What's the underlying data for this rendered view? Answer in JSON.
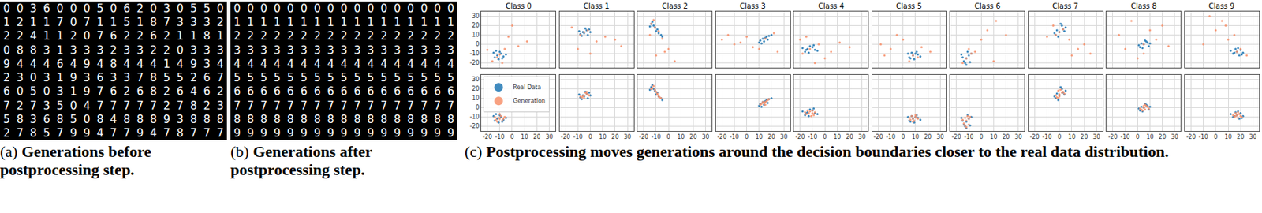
{
  "panels": [
    {
      "label": "(a)",
      "caption": "Generations before postprocessing step.",
      "grid": [
        "00360005062030550",
        "12117071151873332",
        "22411207622621181",
        "08831333233220333",
        "94446494844414934",
        "23031936337855267",
        "60503197626826462",
        "72735047777727823",
        "58368508488893888",
        "27857994779478777"
      ]
    },
    {
      "label": "(b)",
      "caption": "Generations after postprocessing step.",
      "grid": [
        "00000000000000000",
        "11111111111111111",
        "22222222222222222",
        "33333333333333333",
        "44444444444444444",
        "55555555555555555",
        "66666666666666666",
        "77777777777777777",
        "88888888888888888",
        "99999999999999999"
      ]
    }
  ],
  "chart_data": {
    "type": "scatter",
    "label": "(c)",
    "caption": "Postprocessing moves generations around the decision boundaries closer to the real data distribution.",
    "xlim": [
      -25,
      35
    ],
    "ylim": [
      -25,
      35
    ],
    "xticks": [
      -20,
      -10,
      0,
      10,
      20,
      30
    ],
    "yticks": [
      -20,
      -10,
      0,
      10,
      20,
      30
    ],
    "grid": true,
    "legend": "upper left",
    "series": [
      {
        "name": "Real Data",
        "color": "#1f77b4"
      },
      {
        "name": "Generation",
        "color": "#f7906b"
      }
    ],
    "classes": [
      {
        "title": "Class 0",
        "real": {
          "x": [
            -12,
            -9,
            -14,
            -7,
            -10,
            -5,
            -15,
            -11,
            -8,
            -13
          ],
          "y": [
            -12,
            -10,
            -14,
            -13,
            -8,
            -11,
            -9,
            -16,
            -15,
            -7
          ]
        },
        "generation_before": {
          "x": [
            -10,
            -6,
            -16,
            -3,
            5,
            -12,
            -20,
            0,
            -8,
            12
          ],
          "y": [
            -11,
            -5,
            -18,
            8,
            -2,
            -14,
            -6,
            20,
            -20,
            3
          ]
        },
        "generation_after": {
          "x": [
            -11,
            -9,
            -13,
            -7,
            -10,
            -6,
            -14,
            -12,
            -8,
            -10
          ],
          "y": [
            -11,
            -9,
            -13,
            -12,
            -7,
            -10,
            -10,
            -15,
            -14,
            -12
          ]
        }
      },
      {
        "title": "Class 1",
        "real": {
          "x": [
            -6,
            -3,
            -8,
            -1,
            -5,
            -9,
            -2,
            -4,
            -7,
            0
          ],
          "y": [
            13,
            15,
            11,
            16,
            12,
            14,
            10,
            17,
            9,
            13
          ]
        },
        "generation_before": {
          "x": [
            -5,
            -2,
            -8,
            5,
            12,
            -15,
            20,
            0,
            -10,
            25
          ],
          "y": [
            13,
            15,
            10,
            3,
            8,
            18,
            5,
            -10,
            -5,
            -2
          ]
        },
        "generation_after": {
          "x": [
            -5,
            -3,
            -7,
            -2,
            -6,
            -4,
            -8,
            -1,
            -5,
            -3
          ],
          "y": [
            13,
            15,
            11,
            14,
            12,
            16,
            12,
            13,
            10,
            17
          ]
        }
      },
      {
        "title": "Class 2",
        "real": {
          "x": [
            -12,
            -9,
            -14,
            -8,
            -11,
            -6,
            -13,
            -10,
            -5,
            -15
          ],
          "y": [
            20,
            16,
            22,
            12,
            18,
            10,
            24,
            14,
            8,
            19
          ]
        },
        "generation_before": {
          "x": [
            -11,
            -8,
            -14,
            -5,
            0,
            -10,
            5,
            -15,
            -3,
            -12
          ],
          "y": [
            18,
            14,
            22,
            6,
            -5,
            -12,
            -18,
            10,
            -8,
            26
          ]
        },
        "generation_after": {
          "x": [
            -11,
            -9,
            -13,
            -8,
            -10,
            -7,
            -12,
            -9,
            -6,
            -14
          ],
          "y": [
            19,
            15,
            21,
            12,
            17,
            11,
            23,
            14,
            10,
            20
          ]
        }
      },
      {
        "title": "Class 3",
        "real": {
          "x": [
            13,
            16,
            11,
            18,
            14,
            20,
            10,
            17,
            15,
            12
          ],
          "y": [
            6,
            8,
            4,
            9,
            3,
            10,
            2,
            5,
            7,
            1
          ]
        },
        "generation_before": {
          "x": [
            -20,
            -10,
            0,
            5,
            -15,
            10,
            22,
            -5,
            25,
            15
          ],
          "y": [
            5,
            0,
            8,
            -3,
            10,
            -5,
            12,
            2,
            -8,
            6
          ]
        },
        "generation_after": {
          "x": [
            14,
            16,
            12,
            17,
            15,
            13,
            18,
            11,
            15,
            14
          ],
          "y": [
            5,
            7,
            4,
            8,
            3,
            6,
            9,
            3,
            6,
            5
          ]
        }
      },
      {
        "title": "Class 4",
        "real": {
          "x": [
            -14,
            -10,
            -16,
            -8,
            -12,
            -18,
            -6,
            -13,
            -9,
            -15
          ],
          "y": [
            -5,
            -3,
            -8,
            -6,
            -2,
            -4,
            -7,
            -9,
            -1,
            -6
          ]
        },
        "generation_before": {
          "x": [
            -12,
            -5,
            -18,
            5,
            12,
            -20,
            0,
            20,
            -8,
            -15
          ],
          "y": [
            -5,
            0,
            -10,
            -8,
            2,
            5,
            -15,
            -3,
            -20,
            8
          ]
        },
        "generation_after": {
          "x": [
            -13,
            -10,
            -15,
            -8,
            -12,
            -16,
            -9,
            -11,
            -14,
            -10
          ],
          "y": [
            -6,
            -3,
            -7,
            -5,
            -4,
            -5,
            -8,
            -9,
            -3,
            -6
          ]
        }
      },
      {
        "title": "Class 5",
        "real": {
          "x": [
            8,
            10,
            5,
            12,
            7,
            14,
            4,
            9,
            11,
            6
          ],
          "y": [
            -12,
            -10,
            -14,
            -11,
            -9,
            -13,
            -10,
            -16,
            -8,
            -15
          ]
        },
        "generation_before": {
          "x": [
            -18,
            -10,
            0,
            8,
            15,
            22,
            5,
            -5,
            12,
            -15
          ],
          "y": [
            0,
            -5,
            5,
            -12,
            -3,
            -8,
            -18,
            10,
            -14,
            -12
          ]
        },
        "generation_after": {
          "x": [
            8,
            10,
            6,
            11,
            7,
            9,
            5,
            12,
            8,
            10
          ],
          "y": [
            -12,
            -10,
            -13,
            -11,
            -9,
            -14,
            -11,
            -12,
            -15,
            -8
          ]
        }
      },
      {
        "title": "Class 6",
        "real": {
          "x": [
            -12,
            -10,
            -14,
            -8,
            -13,
            -11,
            -15,
            -9,
            -12,
            -16
          ],
          "y": [
            -15,
            -12,
            -18,
            -10,
            -20,
            -8,
            -14,
            -19,
            -22,
            -11
          ]
        },
        "generation_before": {
          "x": [
            -12,
            -5,
            -15,
            0,
            5,
            12,
            -8,
            20,
            -10,
            10
          ],
          "y": [
            -15,
            -8,
            -20,
            5,
            15,
            25,
            -10,
            10,
            -5,
            -18
          ]
        },
        "generation_after": {
          "x": [
            -12,
            -10,
            -14,
            -9,
            -13,
            -11,
            -15,
            -10,
            -12,
            -13
          ],
          "y": [
            -14,
            -12,
            -17,
            -10,
            -19,
            -9,
            -13,
            -18,
            -21,
            -11
          ]
        }
      },
      {
        "title": "Class 7",
        "real": {
          "x": [
            0,
            3,
            -3,
            5,
            -1,
            2,
            -4,
            4,
            1,
            -2
          ],
          "y": [
            13,
            16,
            10,
            18,
            8,
            20,
            12,
            14,
            22,
            15
          ]
        },
        "generation_before": {
          "x": [
            0,
            3,
            -3,
            8,
            15,
            20,
            -5,
            25,
            10,
            -10
          ],
          "y": [
            13,
            16,
            10,
            5,
            -5,
            0,
            20,
            -10,
            -12,
            8
          ]
        },
        "generation_after": {
          "x": [
            0,
            2,
            -2,
            3,
            -1,
            1,
            -3,
            4,
            0,
            -1
          ],
          "y": [
            14,
            16,
            11,
            17,
            10,
            19,
            13,
            15,
            12,
            18
          ]
        }
      },
      {
        "title": "Class 8",
        "real": {
          "x": [
            5,
            8,
            2,
            10,
            4,
            7,
            1,
            9,
            6,
            3
          ],
          "y": [
            0,
            2,
            -3,
            1,
            -4,
            3,
            -1,
            -2,
            4,
            1
          ]
        },
        "generation_before": {
          "x": [
            -15,
            -5,
            5,
            15,
            25,
            0,
            10,
            -10,
            20,
            5
          ],
          "y": [
            10,
            25,
            0,
            5,
            -2,
            -15,
            15,
            -5,
            20,
            -10
          ]
        },
        "generation_after": {
          "x": [
            5,
            7,
            3,
            8,
            4,
            6,
            2,
            9,
            5,
            6
          ],
          "y": [
            0,
            2,
            -2,
            1,
            -3,
            3,
            -1,
            -1,
            2,
            -2
          ]
        }
      },
      {
        "title": "Class 9",
        "real": {
          "x": [
            17,
            20,
            14,
            22,
            16,
            19,
            12,
            18,
            21,
            15
          ],
          "y": [
            -8,
            -6,
            -10,
            -9,
            -5,
            -12,
            -7,
            -4,
            -11,
            -9
          ]
        },
        "generation_before": {
          "x": [
            17,
            5,
            0,
            10,
            20,
            -5,
            15,
            25,
            8,
            -10
          ],
          "y": [
            -8,
            25,
            15,
            5,
            -5,
            30,
            10,
            -12,
            20,
            0
          ]
        },
        "generation_after": {
          "x": [
            17,
            19,
            15,
            20,
            16,
            18,
            14,
            18,
            21,
            16
          ],
          "y": [
            -8,
            -7,
            -10,
            -9,
            -6,
            -11,
            -8,
            -5,
            -10,
            -9
          ]
        }
      }
    ]
  }
}
